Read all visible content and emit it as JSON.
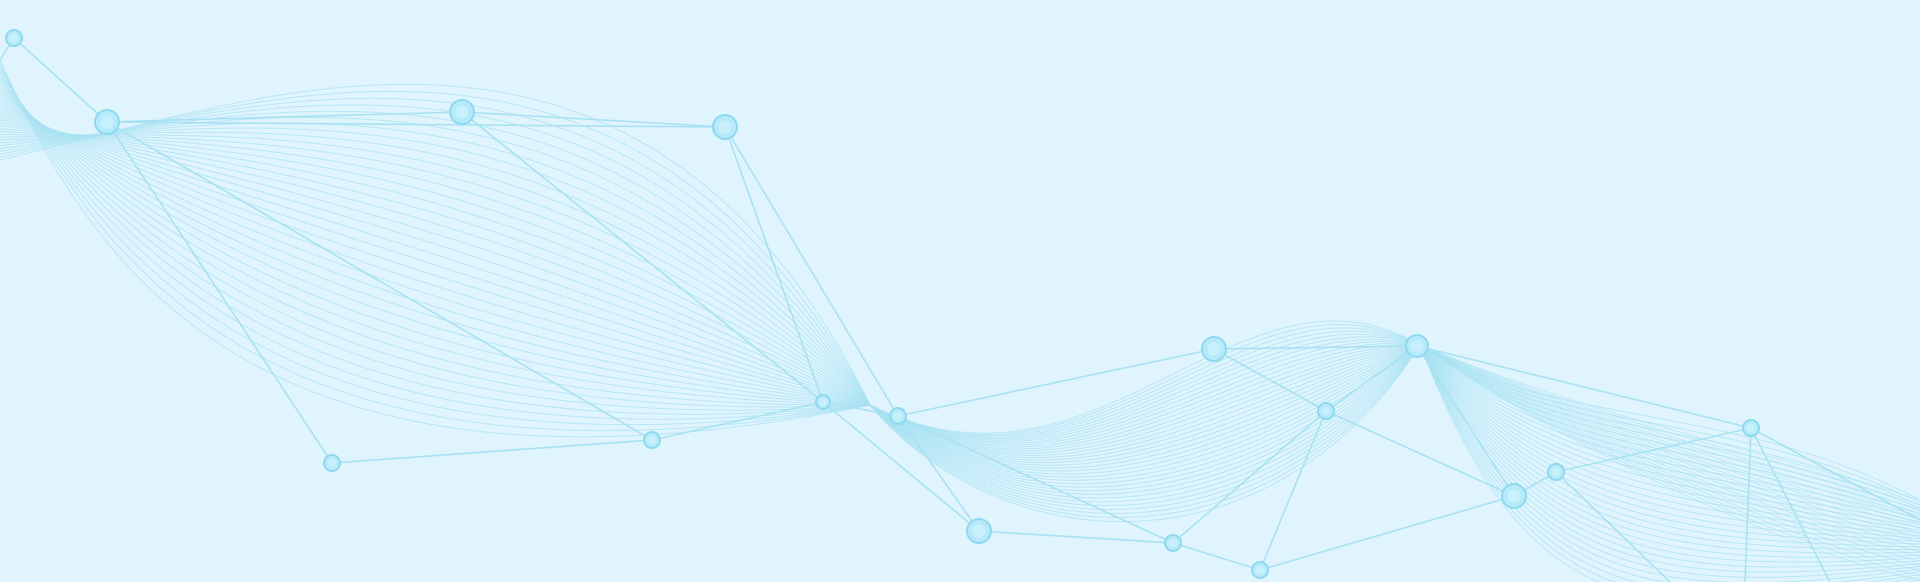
{
  "background": {
    "color": "#e0f4fd",
    "line_color": "#a8e2f2",
    "node_color": "#b6eafa",
    "node_stroke": "#8fd9ef",
    "motif": "abstract-wave-network"
  }
}
